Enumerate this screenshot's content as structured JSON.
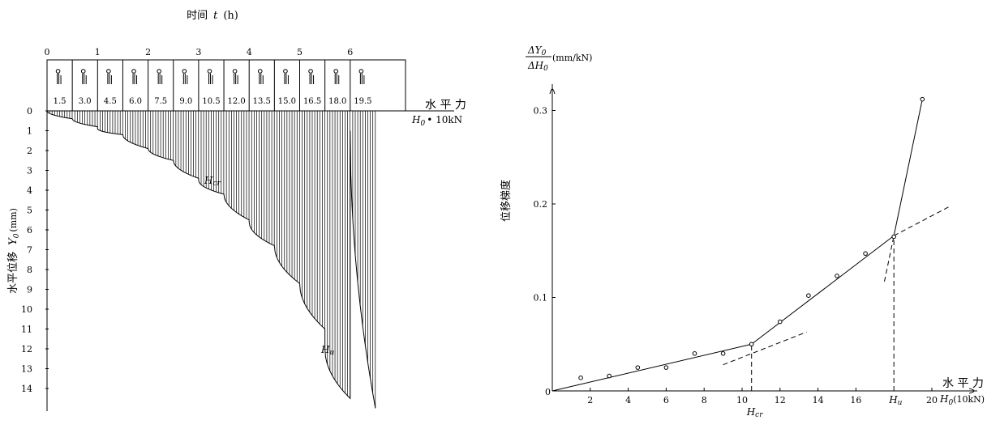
{
  "chart_data": [
    {
      "type": "area",
      "top_axis": {
        "label_text": "时间",
        "label_symbol": "t",
        "label_unit": "(h)",
        "ticks": [
          "0",
          "1",
          "2",
          "3",
          "4",
          "5",
          "6"
        ]
      },
      "load_steps": [
        "1.5",
        "3.0",
        "4.5",
        "6.0",
        "7.5",
        "9.0",
        "10.5",
        "12.0",
        "13.5",
        "15.0",
        "16.5",
        "18.0",
        "19.5"
      ],
      "y_axis": {
        "label_text": "水平位移",
        "label_symbol": "Y",
        "label_sub": "0",
        "label_unit": "(mm)",
        "ticks": [
          "0",
          "1",
          "2",
          "3",
          "4",
          "5",
          "6",
          "7",
          "8",
          "9",
          "10",
          "11",
          "12",
          "13",
          "14"
        ],
        "range": [
          0,
          15
        ]
      },
      "force_label": {
        "text": "水 平 力",
        "symbol": "H",
        "sub": "0",
        "unit": "• 10kN"
      },
      "stage_displacements": [
        {
          "start": 0.0,
          "end": 0.4
        },
        {
          "start": 0.4,
          "end": 0.8
        },
        {
          "start": 0.9,
          "end": 1.2
        },
        {
          "start": 1.2,
          "end": 1.9
        },
        {
          "start": 1.9,
          "end": 2.5
        },
        {
          "start": 2.5,
          "end": 3.4
        },
        {
          "start": 3.5,
          "end": 4.2
        },
        {
          "start": 4.2,
          "end": 5.5
        },
        {
          "start": 5.6,
          "end": 6.8
        },
        {
          "start": 6.8,
          "end": 8.7
        },
        {
          "start": 8.7,
          "end": 11.0
        },
        {
          "start": 12.0,
          "end": 14.5
        },
        {
          "start": 1.0,
          "end": 15.0
        }
      ],
      "annotations": [
        {
          "symbol": "H",
          "sub": "cr"
        },
        {
          "symbol": "H",
          "sub": "u"
        }
      ]
    },
    {
      "type": "line",
      "y_axis": {
        "label_num": "ΔY",
        "label_num_sub": "0",
        "label_den": "ΔH",
        "label_den_sub": "0",
        "label_unit": "(mm/kN)",
        "label_vertical": "位移梯度",
        "ticks": [
          "0.1",
          "0.2",
          "0.3"
        ],
        "range": [
          0,
          0.32
        ]
      },
      "x_axis": {
        "label_text": "水 平 力",
        "label_symbol": "H",
        "label_sub": "0",
        "label_unit": "(10kN)",
        "ticks": [
          "2",
          "4",
          "6",
          "8",
          "10",
          "12",
          "14",
          "16",
          "20"
        ],
        "range": [
          0,
          20
        ]
      },
      "origin_label": "0",
      "points": [
        {
          "x": 1.5,
          "y": 0.014
        },
        {
          "x": 3.0,
          "y": 0.016
        },
        {
          "x": 4.5,
          "y": 0.025
        },
        {
          "x": 6.0,
          "y": 0.025
        },
        {
          "x": 7.5,
          "y": 0.04
        },
        {
          "x": 9.0,
          "y": 0.04
        },
        {
          "x": 10.5,
          "y": 0.05
        },
        {
          "x": 12.0,
          "y": 0.074
        },
        {
          "x": 13.5,
          "y": 0.102
        },
        {
          "x": 15.0,
          "y": 0.123
        },
        {
          "x": 16.5,
          "y": 0.147
        },
        {
          "x": 18.0,
          "y": 0.165
        },
        {
          "x": 19.5,
          "y": 0.312
        }
      ],
      "fit_lines": [
        {
          "from": [
            0,
            0
          ],
          "to": [
            10.5,
            0.05
          ]
        },
        {
          "from": [
            10.5,
            0.05
          ],
          "to": [
            18.0,
            0.166
          ]
        },
        {
          "from": [
            18.0,
            0.166
          ],
          "to": [
            19.5,
            0.312
          ]
        }
      ],
      "dashed_lines": [
        {
          "from": [
            9.0,
            0.028
          ],
          "to": [
            13.4,
            0.063
          ]
        },
        {
          "from": [
            18.0,
            0.166
          ],
          "to": [
            21.0,
            0.198
          ]
        },
        {
          "from": [
            17.5,
            0.117
          ],
          "to": [
            18.0,
            0.166
          ]
        },
        {
          "from": [
            10.5,
            0.0
          ],
          "to": [
            10.5,
            0.05
          ]
        },
        {
          "from": [
            18.0,
            0.0
          ],
          "to": [
            18.0,
            0.166
          ]
        }
      ],
      "annotations": [
        {
          "symbol": "H",
          "sub": "cr",
          "x": 10.5
        },
        {
          "symbol": "H",
          "sub": "u",
          "x": 18.0
        }
      ]
    }
  ]
}
